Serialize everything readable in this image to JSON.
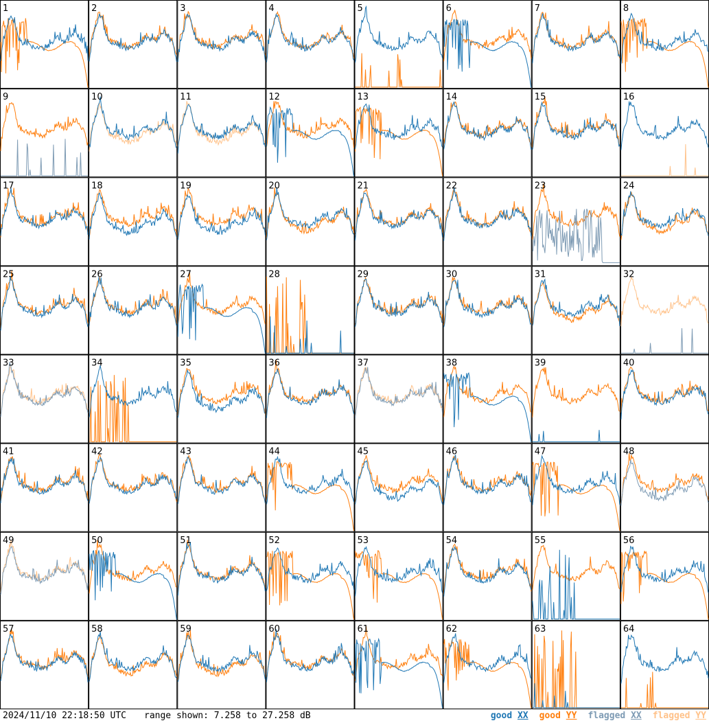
{
  "chart_data": {
    "type": "line",
    "layout": "small-multiples 8x8",
    "timestamp": "2024/11/10 22:18:50 UTC",
    "range_text": "range shown: 7.258 to 27.258 dB",
    "ylim": [
      7.258,
      27.258
    ],
    "y_unit": "dB",
    "legend": [
      {
        "label": "good",
        "pol": "XX",
        "color": "#1f77b4"
      },
      {
        "label": "good",
        "pol": "YY",
        "color": "#ff7f0e"
      },
      {
        "label": "flagged",
        "pol": "XX",
        "color": "#7e9bb4"
      },
      {
        "label": "flagged",
        "pol": "YY",
        "color": "#ffc28a"
      }
    ],
    "colors": {
      "good_xx": "#1f77b4",
      "good_yy": "#ff7f0e",
      "flagged_xx": "#7e9bb4",
      "flagged_yy": "#ffc28a"
    },
    "antennas": [
      {
        "id": "1",
        "xx": "normal",
        "yy": "rolloff",
        "xx_flag": false,
        "yy_flag": false
      },
      {
        "id": "2",
        "xx": "normal",
        "yy": "normal",
        "xx_flag": false,
        "yy_flag": false
      },
      {
        "id": "3",
        "xx": "normal",
        "yy": "normal",
        "xx_flag": false,
        "yy_flag": false
      },
      {
        "id": "4",
        "xx": "normal",
        "yy": "normal",
        "xx_flag": false,
        "yy_flag": false
      },
      {
        "id": "5",
        "xx": "normal",
        "yy": "dead",
        "xx_flag": false,
        "yy_flag": false
      },
      {
        "id": "6",
        "xx": "rolloff",
        "yy": "normal",
        "xx_flag": false,
        "yy_flag": false
      },
      {
        "id": "7",
        "xx": "normal",
        "yy": "normal",
        "xx_flag": false,
        "yy_flag": false
      },
      {
        "id": "8",
        "xx": "normal",
        "yy": "rolloff",
        "xx_flag": false,
        "yy_flag": false
      },
      {
        "id": "9",
        "xx": "dead",
        "yy": "normal",
        "xx_flag": true,
        "yy_flag": false
      },
      {
        "id": "10",
        "xx": "normal",
        "yy": "low",
        "xx_flag": false,
        "yy_flag": true
      },
      {
        "id": "11",
        "xx": "normal",
        "yy": "low",
        "xx_flag": false,
        "yy_flag": true
      },
      {
        "id": "12",
        "xx": "rolloff",
        "yy": "normal",
        "xx_flag": false,
        "yy_flag": false
      },
      {
        "id": "13",
        "xx": "normal",
        "yy": "rolloff",
        "xx_flag": false,
        "yy_flag": false
      },
      {
        "id": "14",
        "xx": "normal",
        "yy": "normal",
        "xx_flag": false,
        "yy_flag": false
      },
      {
        "id": "15",
        "xx": "normal",
        "yy": "normal",
        "xx_flag": false,
        "yy_flag": false
      },
      {
        "id": "16",
        "xx": "normal",
        "yy": "dead",
        "xx_flag": false,
        "yy_flag": true
      },
      {
        "id": "17",
        "xx": "normal",
        "yy": "normal",
        "xx_flag": false,
        "yy_flag": false
      },
      {
        "id": "18",
        "xx": "low",
        "yy": "normal",
        "xx_flag": false,
        "yy_flag": false
      },
      {
        "id": "19",
        "xx": "low",
        "yy": "normal",
        "xx_flag": false,
        "yy_flag": false
      },
      {
        "id": "20",
        "xx": "normal",
        "yy": "low",
        "xx_flag": false,
        "yy_flag": false
      },
      {
        "id": "21",
        "xx": "normal",
        "yy": "normal",
        "xx_flag": false,
        "yy_flag": false
      },
      {
        "id": "22",
        "xx": "normal",
        "yy": "normal",
        "xx_flag": false,
        "yy_flag": false
      },
      {
        "id": "23",
        "xx": "noise",
        "yy": "normal",
        "xx_flag": true,
        "yy_flag": false
      },
      {
        "id": "24",
        "xx": "normal",
        "yy": "low",
        "xx_flag": false,
        "yy_flag": false
      },
      {
        "id": "25",
        "xx": "normal",
        "yy": "normal",
        "xx_flag": false,
        "yy_flag": false
      },
      {
        "id": "26",
        "xx": "normal",
        "yy": "normal",
        "xx_flag": false,
        "yy_flag": false
      },
      {
        "id": "27",
        "xx": "rolloff",
        "yy": "normal",
        "xx_flag": false,
        "yy_flag": false
      },
      {
        "id": "28",
        "xx": "dead",
        "yy": "spikes",
        "xx_flag": false,
        "yy_flag": false
      },
      {
        "id": "29",
        "xx": "normal",
        "yy": "normal",
        "xx_flag": false,
        "yy_flag": false
      },
      {
        "id": "30",
        "xx": "normal",
        "yy": "normal",
        "xx_flag": false,
        "yy_flag": false
      },
      {
        "id": "31",
        "xx": "normal",
        "yy": "low",
        "xx_flag": false,
        "yy_flag": false
      },
      {
        "id": "32",
        "xx": "dead",
        "yy": "normal",
        "xx_flag": true,
        "yy_flag": true
      },
      {
        "id": "33",
        "xx": "normal",
        "yy": "normal",
        "xx_flag": true,
        "yy_flag": true
      },
      {
        "id": "34",
        "xx": "normal",
        "yy": "spikes",
        "xx_flag": false,
        "yy_flag": false
      },
      {
        "id": "35",
        "xx": "low",
        "yy": "normal",
        "xx_flag": false,
        "yy_flag": false
      },
      {
        "id": "36",
        "xx": "normal",
        "yy": "normal",
        "xx_flag": false,
        "yy_flag": false
      },
      {
        "id": "37",
        "xx": "normal",
        "yy": "normal",
        "xx_flag": true,
        "yy_flag": true
      },
      {
        "id": "38",
        "xx": "rolloff",
        "yy": "normal",
        "xx_flag": false,
        "yy_flag": false
      },
      {
        "id": "39",
        "xx": "dead",
        "yy": "normal",
        "xx_flag": false,
        "yy_flag": false
      },
      {
        "id": "40",
        "xx": "normal",
        "yy": "normal",
        "xx_flag": false,
        "yy_flag": false
      },
      {
        "id": "41",
        "xx": "normal",
        "yy": "normal",
        "xx_flag": false,
        "yy_flag": false
      },
      {
        "id": "42",
        "xx": "normal",
        "yy": "normal",
        "xx_flag": false,
        "yy_flag": false
      },
      {
        "id": "43",
        "xx": "normal",
        "yy": "normal",
        "xx_flag": false,
        "yy_flag": false
      },
      {
        "id": "44",
        "xx": "normal",
        "yy": "rolloff",
        "xx_flag": false,
        "yy_flag": false
      },
      {
        "id": "45",
        "xx": "low",
        "yy": "normal",
        "xx_flag": false,
        "yy_flag": false
      },
      {
        "id": "46",
        "xx": "normal",
        "yy": "normal",
        "xx_flag": false,
        "yy_flag": false
      },
      {
        "id": "47",
        "xx": "normal",
        "yy": "rolloff",
        "xx_flag": false,
        "yy_flag": false
      },
      {
        "id": "48",
        "xx": "low",
        "yy": "normal",
        "xx_flag": true,
        "yy_flag": false
      },
      {
        "id": "49",
        "xx": "normal",
        "yy": "normal",
        "xx_flag": true,
        "yy_flag": true
      },
      {
        "id": "50",
        "xx": "rolloff",
        "yy": "normal",
        "xx_flag": false,
        "yy_flag": false
      },
      {
        "id": "51",
        "xx": "normal",
        "yy": "normal",
        "xx_flag": false,
        "yy_flag": false
      },
      {
        "id": "52",
        "xx": "normal",
        "yy": "rolloff",
        "xx_flag": false,
        "yy_flag": false
      },
      {
        "id": "53",
        "xx": "normal",
        "yy": "rolloff",
        "xx_flag": false,
        "yy_flag": false
      },
      {
        "id": "54",
        "xx": "normal",
        "yy": "normal",
        "xx_flag": false,
        "yy_flag": false
      },
      {
        "id": "55",
        "xx": "spikes",
        "yy": "normal",
        "xx_flag": false,
        "yy_flag": false
      },
      {
        "id": "56",
        "xx": "normal",
        "yy": "rolloff",
        "xx_flag": false,
        "yy_flag": false
      },
      {
        "id": "57",
        "xx": "normal",
        "yy": "normal",
        "xx_flag": false,
        "yy_flag": false
      },
      {
        "id": "58",
        "xx": "normal",
        "yy": "low",
        "xx_flag": false,
        "yy_flag": false
      },
      {
        "id": "59",
        "xx": "normal",
        "yy": "low",
        "xx_flag": false,
        "yy_flag": false
      },
      {
        "id": "60",
        "xx": "normal",
        "yy": "normal",
        "xx_flag": false,
        "yy_flag": false
      },
      {
        "id": "61",
        "xx": "rolloff",
        "yy": "normal",
        "xx_flag": false,
        "yy_flag": false
      },
      {
        "id": "62",
        "xx": "normal",
        "yy": "rolloff",
        "xx_flag": false,
        "yy_flag": false
      },
      {
        "id": "63",
        "xx": "dead",
        "yy": "spikes",
        "xx_flag": false,
        "yy_flag": false
      },
      {
        "id": "64",
        "xx": "normal",
        "yy": "dead",
        "xx_flag": false,
        "yy_flag": false
      }
    ]
  }
}
